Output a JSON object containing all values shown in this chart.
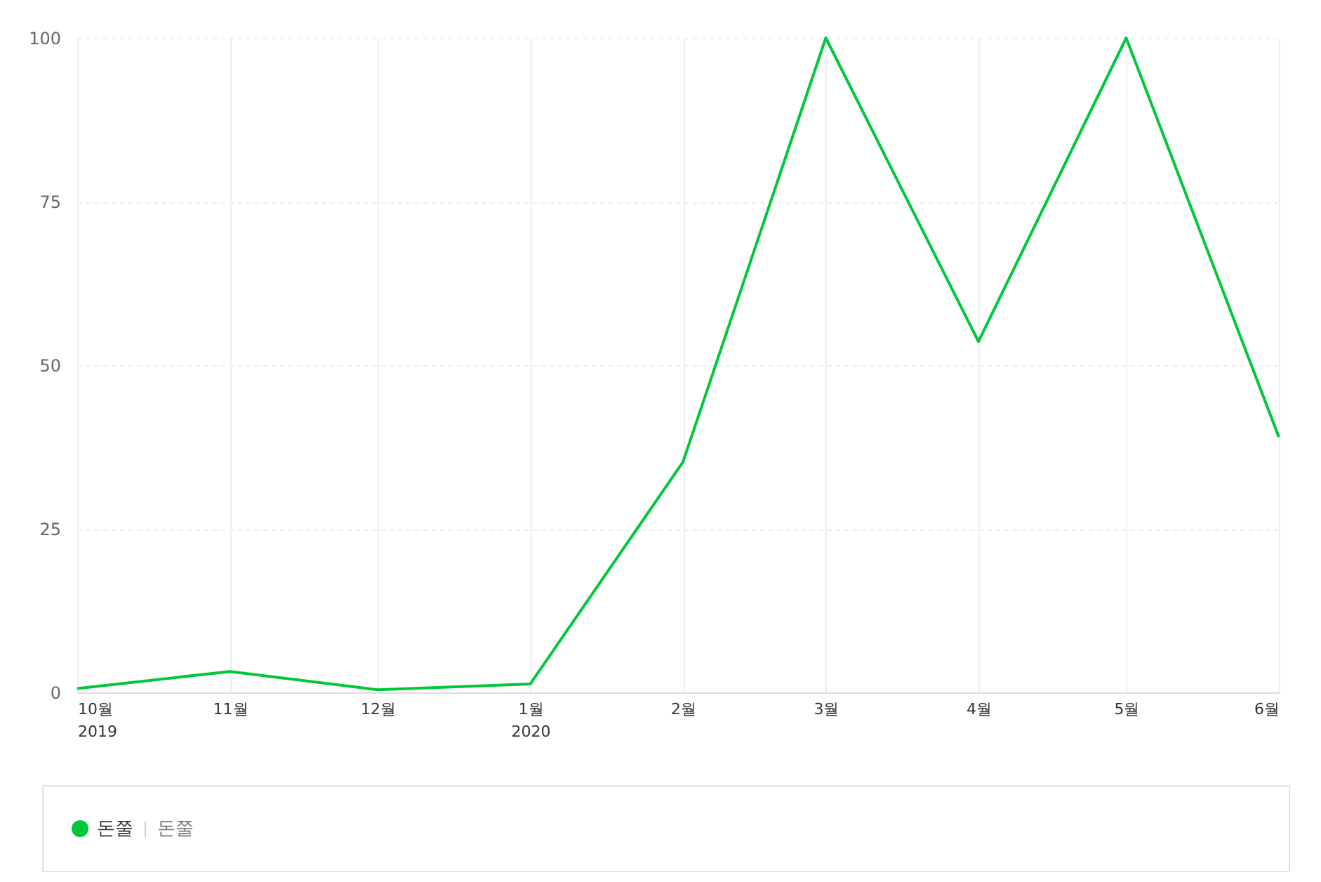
{
  "chart_data": {
    "type": "line",
    "x": [
      "2019-10",
      "2019-11",
      "2019-12",
      "2020-01",
      "2020-02",
      "2020-03",
      "2020-04",
      "2020-05",
      "2020-06"
    ],
    "series": [
      {
        "name": "돈쭐",
        "color": "#00c73c",
        "values": [
          0.6,
          3.2,
          0.4,
          1.3,
          35.2,
          100,
          53.6,
          100,
          39
        ]
      }
    ],
    "xlim": [
      "2019-10",
      "2020-06"
    ],
    "xticks": [
      {
        "value": "2019-10",
        "label": "10월\n2019"
      },
      {
        "value": "2019-11",
        "label": "11월"
      },
      {
        "value": "2019-12",
        "label": "12월"
      },
      {
        "value": "2020-01",
        "label": "1월\n2020"
      },
      {
        "value": "2020-02",
        "label": "2월"
      },
      {
        "value": "2020-03",
        "label": "3월"
      },
      {
        "value": "2020-04",
        "label": "4월"
      },
      {
        "value": "2020-05",
        "label": "5월"
      },
      {
        "value": "2020-06",
        "label": "6월"
      }
    ],
    "ylim": [
      0,
      100
    ],
    "yticks": [
      0,
      25,
      50,
      75,
      100
    ],
    "grid": true,
    "legend": "bottom",
    "marker": "none",
    "line_style": "solid",
    "annotations": [
      "돈쭐"
    ]
  }
}
